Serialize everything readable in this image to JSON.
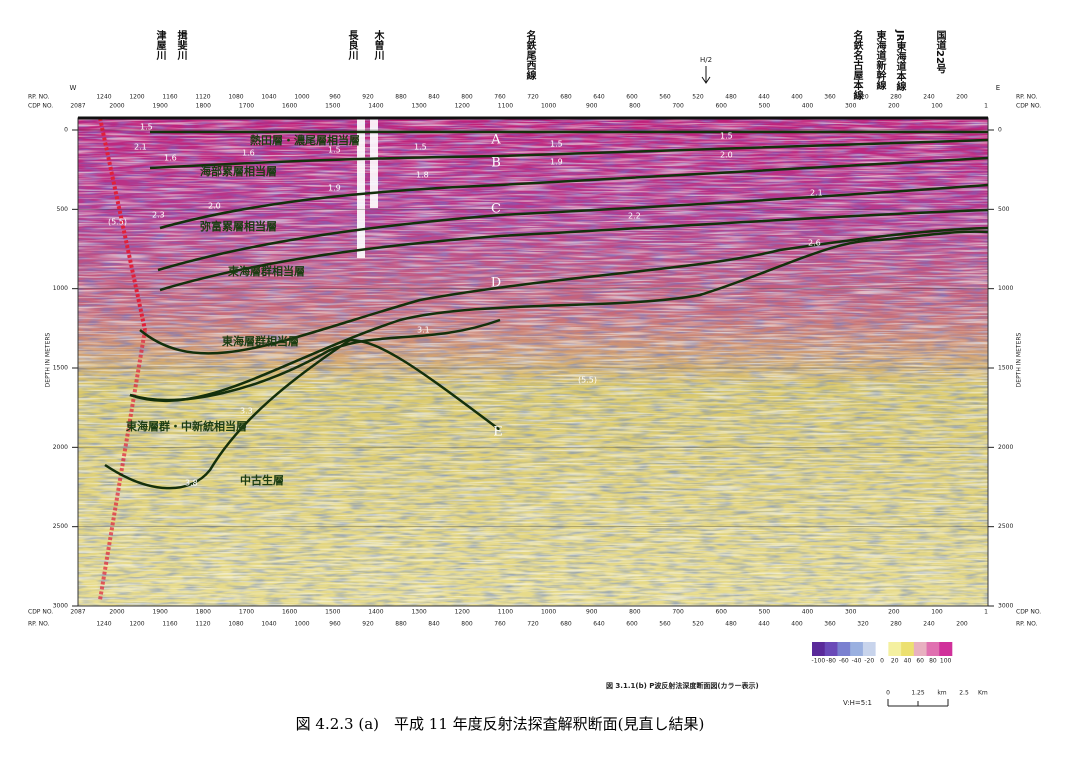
{
  "landmarks": {
    "items": [
      "津屋川",
      "揖斐川",
      "長良川",
      "木曽川",
      "名鉄尾西線",
      "名鉄名古屋本線",
      "東海道新幹線",
      "JR東海道本線",
      "国道22号"
    ],
    "h2": "H/2"
  },
  "axes": {
    "west": "W",
    "east": "E",
    "rp_label": "RP. NO.",
    "cdp_label": "CDP NO.",
    "depth_label": "DEPTH IN METERS",
    "depth_ticks": [
      0,
      500,
      1000,
      1500,
      2000,
      2500,
      3000
    ],
    "depth_lim": [
      0,
      3000
    ],
    "rp_numbers": [
      1240,
      1200,
      1160,
      1120,
      1080,
      1040,
      1000,
      960,
      920,
      880,
      840,
      800,
      760,
      720,
      680,
      640,
      600,
      560,
      520,
      480,
      440,
      400,
      360,
      320,
      280,
      240,
      200
    ],
    "cdp_numbers": [
      2087,
      2000,
      1900,
      1800,
      1700,
      1600,
      1500,
      1400,
      1300,
      1200,
      1100,
      1000,
      900,
      800,
      700,
      600,
      500,
      400,
      300,
      200,
      100,
      1
    ]
  },
  "horizons": [
    "A",
    "B",
    "C",
    "D",
    "E"
  ],
  "layers": [
    "熱田層・濃尾層相当層",
    "海部累層相当層",
    "弥富累層相当層",
    "東海層群相当層",
    "東海層群相当層",
    "東海層群・中新統相当層",
    "中古生層"
  ],
  "velocities": [
    "1.5",
    "2.1",
    "1.6",
    "1.6",
    "1.5",
    "1.9",
    "1.5",
    "1.8",
    "1.5",
    "1.9",
    "1.5",
    "2.0",
    "2.1",
    "2.0",
    "2.3",
    "(5.5)",
    "2.2",
    "2.6",
    "3.1",
    "(5.5)",
    "3.3",
    "3.8"
  ],
  "colorbar": [
    "-100",
    "-80",
    "-60",
    "-40",
    "-20",
    "0",
    "20",
    "40",
    "60",
    "80",
    "100"
  ],
  "notes": {
    "figure": "図 3.1.1(b) P波反射法深度断面図(カラー表示)",
    "ratio": "V:H=5:1",
    "scale": [
      "0",
      "1.25",
      "km",
      "2.5",
      "Km"
    ]
  },
  "caption": "図 4.2.3 (a)　平成 11 年度反射法探査解釈断面(見直し結果)"
}
